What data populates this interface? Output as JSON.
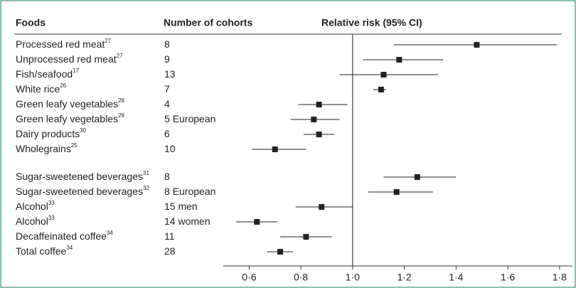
{
  "chart_data": {
    "type": "forest",
    "headers": [
      "Foods",
      "Number of cohorts",
      "Relative risk (95% CI)"
    ],
    "xlim": [
      0.5,
      1.85
    ],
    "xticks": [
      {
        "value": 0.6,
        "label": "0·6"
      },
      {
        "value": 0.8,
        "label": "0·8"
      },
      {
        "value": 1.0,
        "label": "1·0"
      },
      {
        "value": 1.2,
        "label": "1·2"
      },
      {
        "value": 1.4,
        "label": "1·4"
      },
      {
        "value": 1.6,
        "label": "1·6"
      },
      {
        "value": 1.8,
        "label": "1·8"
      }
    ],
    "reference": 1.0,
    "color": "#222222",
    "groups": [
      [
        {
          "name": "Processed red meat",
          "ref": "27",
          "cohorts": 8,
          "rr": 1.48,
          "lo": 1.16,
          "hi": 1.79
        },
        {
          "name": "Unprocessed red meat",
          "ref": "27",
          "cohorts": 9,
          "rr": 1.18,
          "lo": 1.04,
          "hi": 1.35
        },
        {
          "name": "Fish/seafood",
          "ref": "17",
          "cohorts": 13,
          "rr": 1.12,
          "lo": 0.95,
          "hi": 1.33
        },
        {
          "name": "White rice",
          "ref": "26",
          "cohorts": 7,
          "rr": 1.11,
          "lo": 1.08,
          "hi": 1.13
        },
        {
          "name": "Green leafy vegetables",
          "ref": "28",
          "cohorts": 4,
          "rr": 0.87,
          "lo": 0.79,
          "hi": 0.98
        },
        {
          "name": "Green leafy vegetables",
          "ref": "29",
          "cohorts": 5,
          "note": "European",
          "rr": 0.85,
          "lo": 0.76,
          "hi": 0.95
        },
        {
          "name": "Dairy products",
          "ref": "30",
          "cohorts": 6,
          "rr": 0.87,
          "lo": 0.81,
          "hi": 0.93
        },
        {
          "name": "Wholegrains",
          "ref": "25",
          "cohorts": 10,
          "rr": 0.7,
          "lo": 0.61,
          "hi": 0.82
        }
      ],
      [
        {
          "name": "Sugar-sweetened beverages",
          "ref": "31",
          "cohorts": 8,
          "rr": 1.25,
          "lo": 1.12,
          "hi": 1.4
        },
        {
          "name": "Sugar-sweetened beverages",
          "ref": "32",
          "cohorts": 8,
          "note": "European",
          "rr": 1.17,
          "lo": 1.06,
          "hi": 1.31
        },
        {
          "name": "Alcohol",
          "ref": "33",
          "cohorts": 15,
          "note": "men",
          "rr": 0.88,
          "lo": 0.78,
          "hi": 1.0
        },
        {
          "name": "Alcohol",
          "ref": "33",
          "cohorts": 14,
          "note": "women",
          "rr": 0.63,
          "lo": 0.55,
          "hi": 0.71
        },
        {
          "name": "Decaffeinated coffee",
          "ref": "34",
          "cohorts": 11,
          "rr": 0.82,
          "lo": 0.72,
          "hi": 0.92
        },
        {
          "name": "Total coffee",
          "ref": "34",
          "cohorts": 28,
          "rr": 0.72,
          "lo": 0.67,
          "hi": 0.77
        }
      ]
    ]
  }
}
